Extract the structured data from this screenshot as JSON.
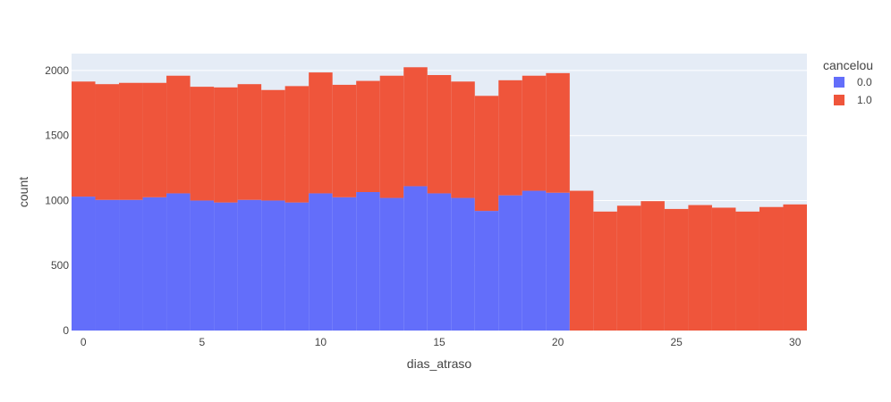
{
  "chart_data": {
    "type": "bar",
    "barmode": "stack",
    "xlabel": "dias_atraso",
    "ylabel": "count",
    "xlim": [
      -0.5,
      30.5
    ],
    "ylim": [
      0,
      2130
    ],
    "x_ticks": [
      0,
      5,
      10,
      15,
      20,
      25,
      30
    ],
    "y_ticks": [
      0,
      500,
      1000,
      1500,
      2000
    ],
    "grid": true,
    "legend": {
      "title": "cancelou",
      "placement": "top-right"
    },
    "x": [
      0,
      1,
      2,
      3,
      4,
      5,
      6,
      7,
      8,
      9,
      10,
      11,
      12,
      13,
      14,
      15,
      16,
      17,
      18,
      19,
      20,
      21,
      22,
      23,
      24,
      25,
      26,
      27,
      28,
      29,
      30
    ],
    "series": [
      {
        "name": "0.0",
        "color": "#636efa",
        "values": [
          1030,
          1005,
          1005,
          1025,
          1055,
          1000,
          985,
          1005,
          1000,
          985,
          1055,
          1025,
          1065,
          1020,
          1110,
          1055,
          1020,
          920,
          1040,
          1075,
          1060,
          0,
          0,
          0,
          0,
          0,
          0,
          0,
          0,
          0,
          0
        ]
      },
      {
        "name": "1.0",
        "color": "#ef553b",
        "values": [
          885,
          890,
          900,
          880,
          905,
          875,
          885,
          890,
          850,
          895,
          930,
          865,
          855,
          940,
          915,
          910,
          895,
          885,
          885,
          885,
          920,
          1075,
          915,
          960,
          995,
          935,
          965,
          945,
          915,
          950,
          970
        ]
      }
    ]
  }
}
